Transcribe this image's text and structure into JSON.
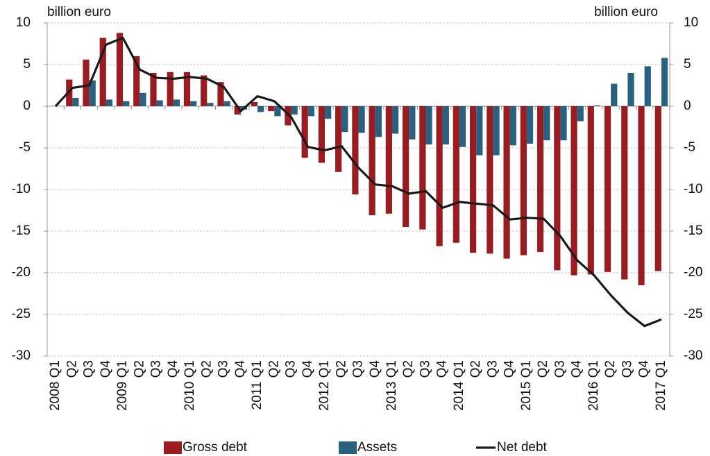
{
  "chart_data": {
    "type": "bar",
    "y_label": "billion euro",
    "y2_label": "billion euro",
    "categories": [
      "2008 Q1",
      "Q2",
      "Q3",
      "Q4",
      "2009 Q1",
      "Q2",
      "Q3",
      "Q4",
      "2010 Q1",
      "Q2",
      "Q3",
      "Q4",
      "2011 Q1",
      "Q2",
      "Q3",
      "Q4",
      "2012 Q1",
      "Q2",
      "Q3",
      "Q4",
      "2013 Q1",
      "Q2",
      "Q3",
      "Q4",
      "2014 Q1",
      "Q2",
      "Q3",
      "Q4",
      "2015 Q1",
      "Q2",
      "Q3",
      "Q4",
      "2016 Q1",
      "Q2",
      "Q3",
      "Q4",
      "2017 Q1"
    ],
    "series": [
      {
        "name": "Gross debt",
        "color": "#9b1c20",
        "kind": "bar",
        "values": [
          0,
          3.2,
          5.6,
          8.2,
          8.8,
          6.0,
          4.0,
          4.1,
          4.1,
          3.7,
          2.9,
          -1.0,
          0.5,
          -0.6,
          -2.3,
          -6.2,
          -6.8,
          -7.9,
          -10.6,
          -13.1,
          -12.9,
          -14.5,
          -14.8,
          -16.8,
          -16.4,
          -17.6,
          -17.7,
          -18.3,
          -17.9,
          -17.5,
          -19.7,
          -20.3,
          -20.2,
          -19.9,
          -20.8,
          -21.5,
          -19.8
        ]
      },
      {
        "name": "Assets",
        "color": "#2a6080",
        "kind": "bar",
        "values": [
          0,
          1.0,
          3.1,
          0.8,
          0.6,
          1.6,
          0.7,
          0.8,
          0.6,
          0.4,
          0.6,
          -0.4,
          -0.7,
          -1.2,
          -1.0,
          -1.2,
          -1.5,
          -3.1,
          -3.2,
          -3.7,
          -3.3,
          -4.0,
          -4.6,
          -4.6,
          -4.9,
          -5.9,
          -5.9,
          -4.7,
          -4.5,
          -4.1,
          -4.1,
          -1.8,
          0.1,
          2.7,
          4.0,
          4.8,
          5.8
        ]
      },
      {
        "name": "Net debt",
        "color": "#1a1a1a",
        "kind": "line",
        "values": [
          0,
          2.2,
          2.5,
          7.4,
          8.2,
          4.4,
          3.4,
          3.3,
          3.5,
          3.3,
          2.3,
          -0.6,
          1.2,
          0.6,
          -1.3,
          -4.9,
          -5.3,
          -4.8,
          -7.4,
          -9.4,
          -9.6,
          -10.5,
          -10.2,
          -12.2,
          -11.5,
          -11.7,
          -11.9,
          -13.6,
          -13.4,
          -13.5,
          -15.6,
          -18.5,
          -20.3,
          -22.7,
          -24.8,
          -26.4,
          -25.6
        ]
      }
    ],
    "ylim": [
      -30,
      10
    ],
    "yticks": [
      -30,
      -25,
      -20,
      -15,
      -10,
      -5,
      0,
      5,
      10
    ],
    "y2lim": [
      -30,
      10
    ],
    "y2ticks": [
      -30,
      -25,
      -20,
      -15,
      -10,
      -5,
      0,
      5,
      10
    ],
    "grid": true,
    "legend": "bottom"
  }
}
